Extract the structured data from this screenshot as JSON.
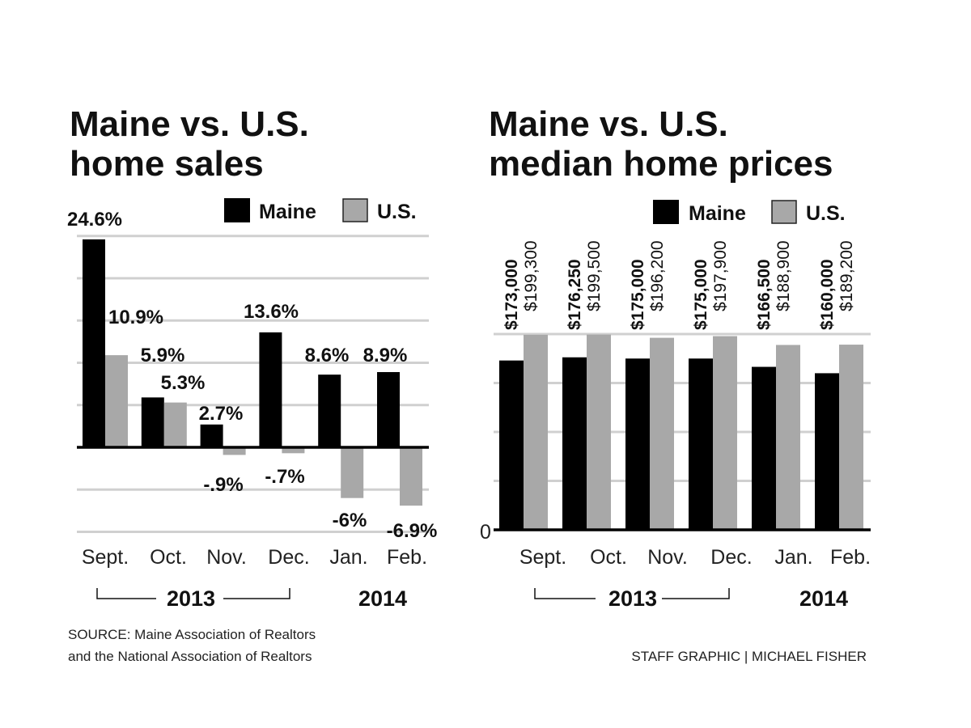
{
  "colors": {
    "maine": "#000000",
    "us": "#a8a8a8",
    "grid": "#d0d0d0",
    "axis": "#000000"
  },
  "chart_data": [
    {
      "type": "bar",
      "title_lines": [
        "Maine vs. U.S.",
        "home sales"
      ],
      "categories": [
        "Sept.",
        "Oct.",
        "Nov.",
        "Dec.",
        "Jan.",
        "Feb."
      ],
      "series": [
        {
          "name": "Maine",
          "values": [
            24.6,
            5.9,
            2.7,
            13.6,
            8.6,
            8.9
          ],
          "labels": [
            "24.6%",
            "5.9%",
            "2.7%",
            "13.6%",
            "8.6%",
            "8.9%"
          ]
        },
        {
          "name": "U.S.",
          "values": [
            10.9,
            5.3,
            -0.9,
            -0.7,
            -6,
            -6.9
          ],
          "labels": [
            "10.9%",
            "5.3%",
            "-.9%",
            "-.7%",
            "-6%",
            "-6.9%"
          ]
        }
      ],
      "ylim": [
        -10,
        25
      ],
      "gridlines": [
        -10,
        -5,
        5,
        10,
        15,
        20,
        25
      ],
      "grid": true,
      "legend": "top-right",
      "years": [
        "2013",
        "2014"
      ]
    },
    {
      "type": "bar",
      "title_lines": [
        "Maine vs. U.S.",
        "median home prices"
      ],
      "categories": [
        "Sept.",
        "Oct.",
        "Nov.",
        "Dec.",
        "Jan.",
        "Feb."
      ],
      "series": [
        {
          "name": "Maine",
          "values": [
            173000,
            176250,
            175000,
            175000,
            166500,
            160000
          ],
          "labels": [
            "$173,000",
            "$176,250",
            "$175,000",
            "$175,000",
            "$166,500",
            "$160,000"
          ]
        },
        {
          "name": "U.S.",
          "values": [
            199300,
            199500,
            196200,
            197900,
            188900,
            189200
          ],
          "labels": [
            "$199,300",
            "$199,500",
            "$196,200",
            "$197,900",
            "$188,900",
            "$189,200"
          ]
        }
      ],
      "ylim": [
        0,
        200000
      ],
      "gridlines": [
        50000,
        100000,
        150000,
        200000
      ],
      "ytick_label": "0",
      "grid": true,
      "legend": "top-right",
      "years": [
        "2013",
        "2014"
      ]
    }
  ],
  "footer": {
    "source_line1": "SOURCE: Maine Association of Realtors",
    "source_line2": "and the National Association of Realtors",
    "credit": "STAFF GRAPHIC | MICHAEL FISHER"
  }
}
